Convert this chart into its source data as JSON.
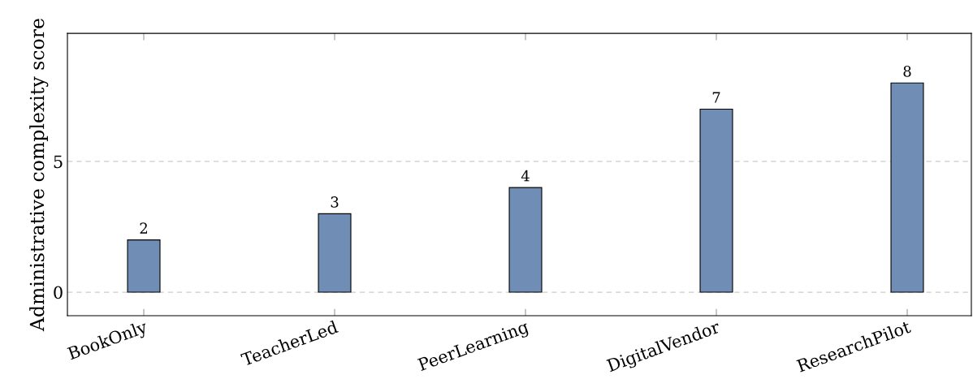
{
  "chart_data": {
    "type": "bar",
    "categories": [
      "BookOnly",
      "TeacherLed",
      "PeerLearning",
      "DigitalVendor",
      "ResearchPilot"
    ],
    "values": [
      2,
      3,
      4,
      7,
      8
    ],
    "color": "#6f8db5",
    "ylabel": "Administrative complexity score",
    "ylim": [
      -0.9,
      9.9
    ],
    "yticks": [
      0,
      5
    ],
    "grid": "y",
    "data_labels": true
  }
}
